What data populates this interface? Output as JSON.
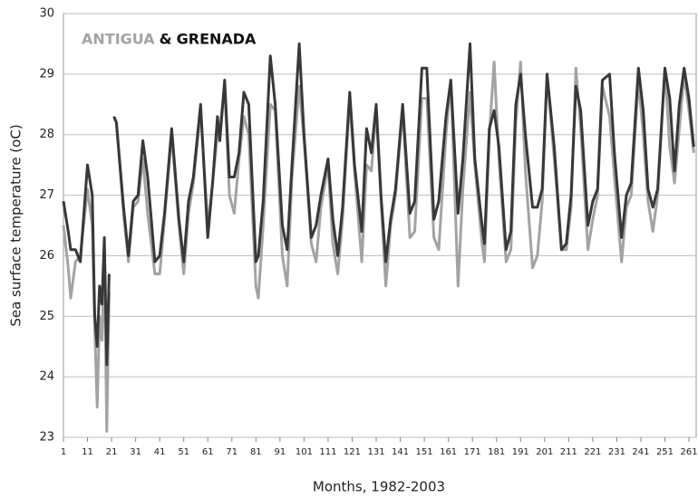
{
  "chart_data": {
    "type": "line",
    "title_joiner": "&",
    "xlabel": "Months, 1982-2003",
    "ylabel": "Sea surface temperature (oC)",
    "xlim": [
      1,
      264
    ],
    "ylim": [
      23,
      30
    ],
    "xticks": [
      1,
      11,
      21,
      31,
      41,
      51,
      61,
      71,
      81,
      91,
      101,
      111,
      121,
      131,
      141,
      151,
      161,
      171,
      181,
      191,
      201,
      211,
      221,
      231,
      241,
      251,
      261
    ],
    "yticks": [
      23,
      24,
      25,
      26,
      27,
      28,
      29,
      30
    ],
    "grid": true,
    "x": [
      1,
      3,
      4,
      6,
      8,
      11,
      13,
      14,
      15,
      16,
      17,
      18,
      19,
      20,
      21,
      22,
      23,
      26,
      28,
      30,
      32,
      34,
      36,
      39,
      41,
      43,
      46,
      49,
      51,
      53,
      55,
      58,
      61,
      63,
      65,
      66,
      68,
      70,
      72,
      74,
      76,
      78,
      81,
      82,
      84,
      87,
      89,
      92,
      94,
      96,
      99,
      101,
      104,
      106,
      108,
      111,
      113,
      115,
      117,
      120,
      122,
      125,
      127,
      129,
      131,
      133,
      135,
      137,
      139,
      142,
      145,
      147,
      150,
      152,
      155,
      157,
      160,
      162,
      165,
      167,
      170,
      172,
      175,
      176,
      178,
      180,
      182,
      185,
      187,
      189,
      191,
      193,
      196,
      198,
      200,
      202,
      205,
      208,
      210,
      212,
      214,
      216,
      219,
      221,
      223,
      225,
      228,
      230,
      233,
      235,
      237,
      240,
      242,
      244,
      246,
      248,
      251,
      253,
      255,
      257,
      259,
      261,
      263
    ],
    "series": [
      {
        "name": "ANTIGUA",
        "color": "#a3a3a3",
        "values": [
          26.5,
          25.8,
          25.3,
          25.9,
          26.0,
          27.1,
          26.5,
          24.8,
          23.5,
          25.0,
          24.6,
          26.0,
          23.1,
          25.4,
          null,
          28.3,
          28.2,
          26.7,
          25.9,
          26.8,
          26.9,
          27.6,
          26.7,
          25.7,
          25.7,
          26.6,
          28.0,
          26.5,
          25.7,
          26.7,
          27.2,
          28.4,
          26.5,
          27.2,
          28.0,
          28.1,
          28.8,
          27.0,
          26.7,
          27.6,
          28.3,
          28.0,
          25.5,
          25.3,
          26.5,
          28.5,
          28.4,
          26.0,
          25.5,
          27.3,
          28.8,
          27.9,
          26.2,
          25.9,
          26.8,
          27.5,
          26.2,
          25.7,
          26.6,
          28.6,
          27.4,
          25.9,
          27.5,
          27.4,
          28.4,
          26.9,
          25.5,
          26.5,
          27.0,
          28.4,
          26.3,
          26.4,
          28.6,
          28.6,
          26.3,
          26.1,
          28.0,
          28.9,
          25.5,
          27.1,
          28.7,
          27.5,
          26.2,
          25.9,
          28.0,
          29.2,
          27.6,
          25.9,
          26.1,
          28.2,
          29.2,
          27.4,
          25.8,
          26.0,
          26.9,
          29.0,
          27.6,
          26.1,
          26.1,
          26.8,
          29.1,
          28.1,
          26.1,
          26.6,
          27.0,
          28.8,
          28.3,
          27.3,
          25.9,
          26.8,
          27.0,
          28.9,
          28.0,
          26.9,
          26.4,
          27.0,
          29.1,
          27.8,
          27.2,
          28.1,
          29.0,
          28.4,
          27.7
        ]
      },
      {
        "name": "GRENADA",
        "color": "#383838",
        "values": [
          26.9,
          26.4,
          26.1,
          26.1,
          25.9,
          27.5,
          27.0,
          25.0,
          24.5,
          25.5,
          25.2,
          26.3,
          24.2,
          25.7,
          null,
          28.3,
          28.2,
          26.8,
          26.0,
          26.9,
          27.0,
          27.9,
          27.3,
          25.9,
          26.0,
          26.7,
          28.1,
          26.6,
          25.9,
          26.9,
          27.3,
          28.5,
          26.3,
          27.2,
          28.3,
          27.9,
          28.9,
          27.3,
          27.3,
          27.7,
          28.7,
          28.5,
          25.9,
          26.0,
          26.9,
          29.3,
          28.5,
          26.5,
          26.1,
          27.5,
          29.5,
          28.0,
          26.3,
          26.5,
          27.0,
          27.6,
          26.6,
          26.0,
          26.8,
          28.7,
          27.5,
          26.4,
          28.1,
          27.7,
          28.5,
          27.0,
          25.9,
          26.6,
          27.1,
          28.5,
          26.7,
          26.9,
          29.1,
          29.1,
          26.6,
          26.9,
          28.3,
          28.9,
          26.7,
          27.6,
          29.5,
          27.6,
          26.5,
          26.2,
          28.1,
          28.4,
          27.8,
          26.1,
          26.4,
          28.5,
          29.0,
          28.0,
          26.8,
          26.8,
          27.1,
          29.0,
          27.8,
          26.1,
          26.2,
          27.0,
          28.8,
          28.4,
          26.5,
          26.9,
          27.1,
          28.9,
          29.0,
          27.7,
          26.3,
          27.0,
          27.2,
          29.1,
          28.4,
          27.1,
          26.8,
          27.1,
          29.1,
          28.6,
          27.4,
          28.5,
          29.1,
          28.6,
          27.8
        ]
      }
    ]
  }
}
